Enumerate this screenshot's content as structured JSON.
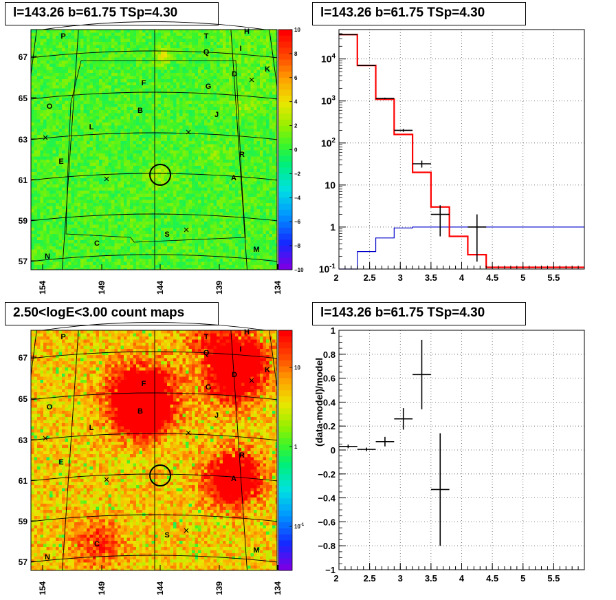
{
  "panels": {
    "tl_title": "l=143.26 b=61.75 TSp=4.30",
    "tr_title": "l=143.26 b=61.75 TSp=4.30",
    "bl_title": "2.50<logE<3.00 count maps",
    "br_title": "l=143.26 b=61.75 TSp=4.30"
  },
  "colors": {
    "data": "#000000",
    "model": "#ff0000",
    "bkg": "#0000cc",
    "grid": "#555555"
  },
  "chart_data": [
    {
      "type": "heatmap",
      "title": "l=143.26 b=61.75 TSp=4.30",
      "x_ticks": [
        "154",
        "149",
        "144",
        "139",
        "134"
      ],
      "y_ticks": [
        "67",
        "65",
        "63",
        "61",
        "59",
        "57"
      ],
      "colorbar_ticks": [
        "10",
        "8",
        "6",
        "4",
        "2",
        "0",
        "−2",
        "−4",
        "−6",
        "−8",
        "−10"
      ],
      "colorbar_range": [
        -10,
        10
      ],
      "sources": [
        "P",
        "T",
        "H",
        "Q",
        "I",
        "D",
        "K",
        "F",
        "G",
        "O",
        "B",
        "J",
        "L",
        "E",
        "R",
        "A",
        "C",
        "S",
        "M",
        "N"
      ]
    },
    {
      "type": "line",
      "title": "l=143.26 b=61.75 TSp=4.30",
      "yscale": "log",
      "xlim": [
        2.0,
        6.0
      ],
      "ylim": [
        0.1,
        50000
      ],
      "x_ticks": [
        "2",
        "2.5",
        "3",
        "3.5",
        "4",
        "4.5",
        "5",
        "5.5"
      ],
      "y_ticks": [
        "10^1",
        "10^4",
        "10^3",
        "10^2",
        "10",
        "1",
        "10^-1"
      ],
      "y_tick_labels": {
        "base": "10",
        "exps": [
          "-1",
          "2",
          "3",
          "4"
        ],
        "plain": [
          "10",
          "1"
        ]
      },
      "bin_edges": [
        2.0,
        2.3,
        2.6,
        2.9,
        3.2,
        3.5,
        3.8,
        4.1,
        4.4,
        6.0
      ],
      "data": {
        "x": [
          2.15,
          2.45,
          2.75,
          3.05,
          3.35,
          3.65,
          3.95,
          4.25
        ],
        "y": [
          38000,
          7000,
          1150,
          200,
          32,
          2,
          0,
          1
        ],
        "ylo": [
          37800,
          6900,
          1100,
          185,
          26,
          0.6,
          0,
          0.15
        ],
        "yhi": [
          38200,
          7100,
          1200,
          215,
          38,
          3.3,
          0,
          2.0
        ]
      },
      "model": [
        38000,
        7000,
        1100,
        160,
        20,
        3,
        0.6,
        0.22,
        0.11
      ],
      "bkg": [
        0.1,
        0.26,
        0.55,
        0.95,
        1.0,
        1.0,
        1.0,
        1.0,
        1.0
      ]
    },
    {
      "type": "heatmap",
      "title": "2.50<logE<3.00 count maps",
      "x_ticks": [
        "154",
        "149",
        "144",
        "139",
        "134"
      ],
      "y_ticks": [
        "67",
        "65",
        "63",
        "61",
        "59",
        "57"
      ],
      "colorbar_ticks": [
        "10",
        "1",
        "10^-1"
      ],
      "colorbar_tick_labels": {
        "base": "10",
        "exps": [
          "-1"
        ]
      },
      "colorbar_scale": "log",
      "sources": [
        "P",
        "T",
        "H",
        "Q",
        "I",
        "D",
        "K",
        "F",
        "G",
        "O",
        "B",
        "J",
        "L",
        "E",
        "R",
        "A",
        "C",
        "S",
        "M",
        "N"
      ]
    },
    {
      "type": "scatter",
      "title": "l=143.26 b=61.75 TSp=4.30",
      "ylabel": "(data-model)/model",
      "xlim": [
        2.0,
        6.0
      ],
      "ylim": [
        -1.0,
        1.0
      ],
      "x_ticks": [
        "2",
        "2.5",
        "3",
        "3.5",
        "4",
        "4.5",
        "5",
        "5.5"
      ],
      "y_ticks": [
        "1",
        "0.8",
        "0.6",
        "0.4",
        "0.2",
        "0",
        "−0.2",
        "−0.4",
        "−0.6",
        "−0.8",
        "−1"
      ],
      "points": [
        {
          "x": 2.15,
          "y": 0.03,
          "err": 0.015
        },
        {
          "x": 2.45,
          "y": 0.005,
          "err": 0.015
        },
        {
          "x": 2.75,
          "y": 0.07,
          "err": 0.04
        },
        {
          "x": 3.05,
          "y": 0.26,
          "err": 0.09
        },
        {
          "x": 3.35,
          "y": 0.63,
          "err": 0.29
        },
        {
          "x": 3.65,
          "y": -0.33,
          "err": 0.47
        }
      ]
    }
  ]
}
